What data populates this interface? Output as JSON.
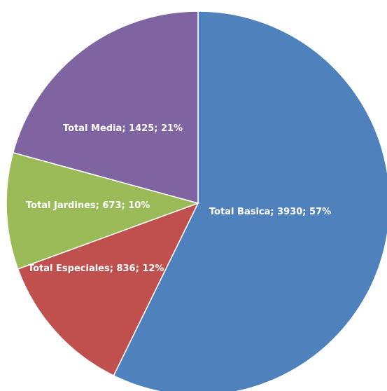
{
  "chart_data": {
    "type": "pie",
    "title": "",
    "legend": "none",
    "start_angle_deg": 0,
    "direction": "clockwise",
    "slices": [
      {
        "name": "Total Basica",
        "value": 3930,
        "percent": "57%",
        "label": "Total Basica; 3930; 57%",
        "color": "#4F81BD"
      },
      {
        "name": "Total Especiales",
        "value": 836,
        "percent": "12%",
        "label": "Total Especiales; 836; 12%",
        "color": "#C0504D"
      },
      {
        "name": "Total Jardines",
        "value": 673,
        "percent": "10%",
        "label": "Total Jardines; 673; 10%",
        "color": "#9BBB59"
      },
      {
        "name": "Total Media",
        "value": 1425,
        "percent": "21%",
        "label": "Total Media; 1425; 21%",
        "color": "#8064A2"
      }
    ]
  }
}
